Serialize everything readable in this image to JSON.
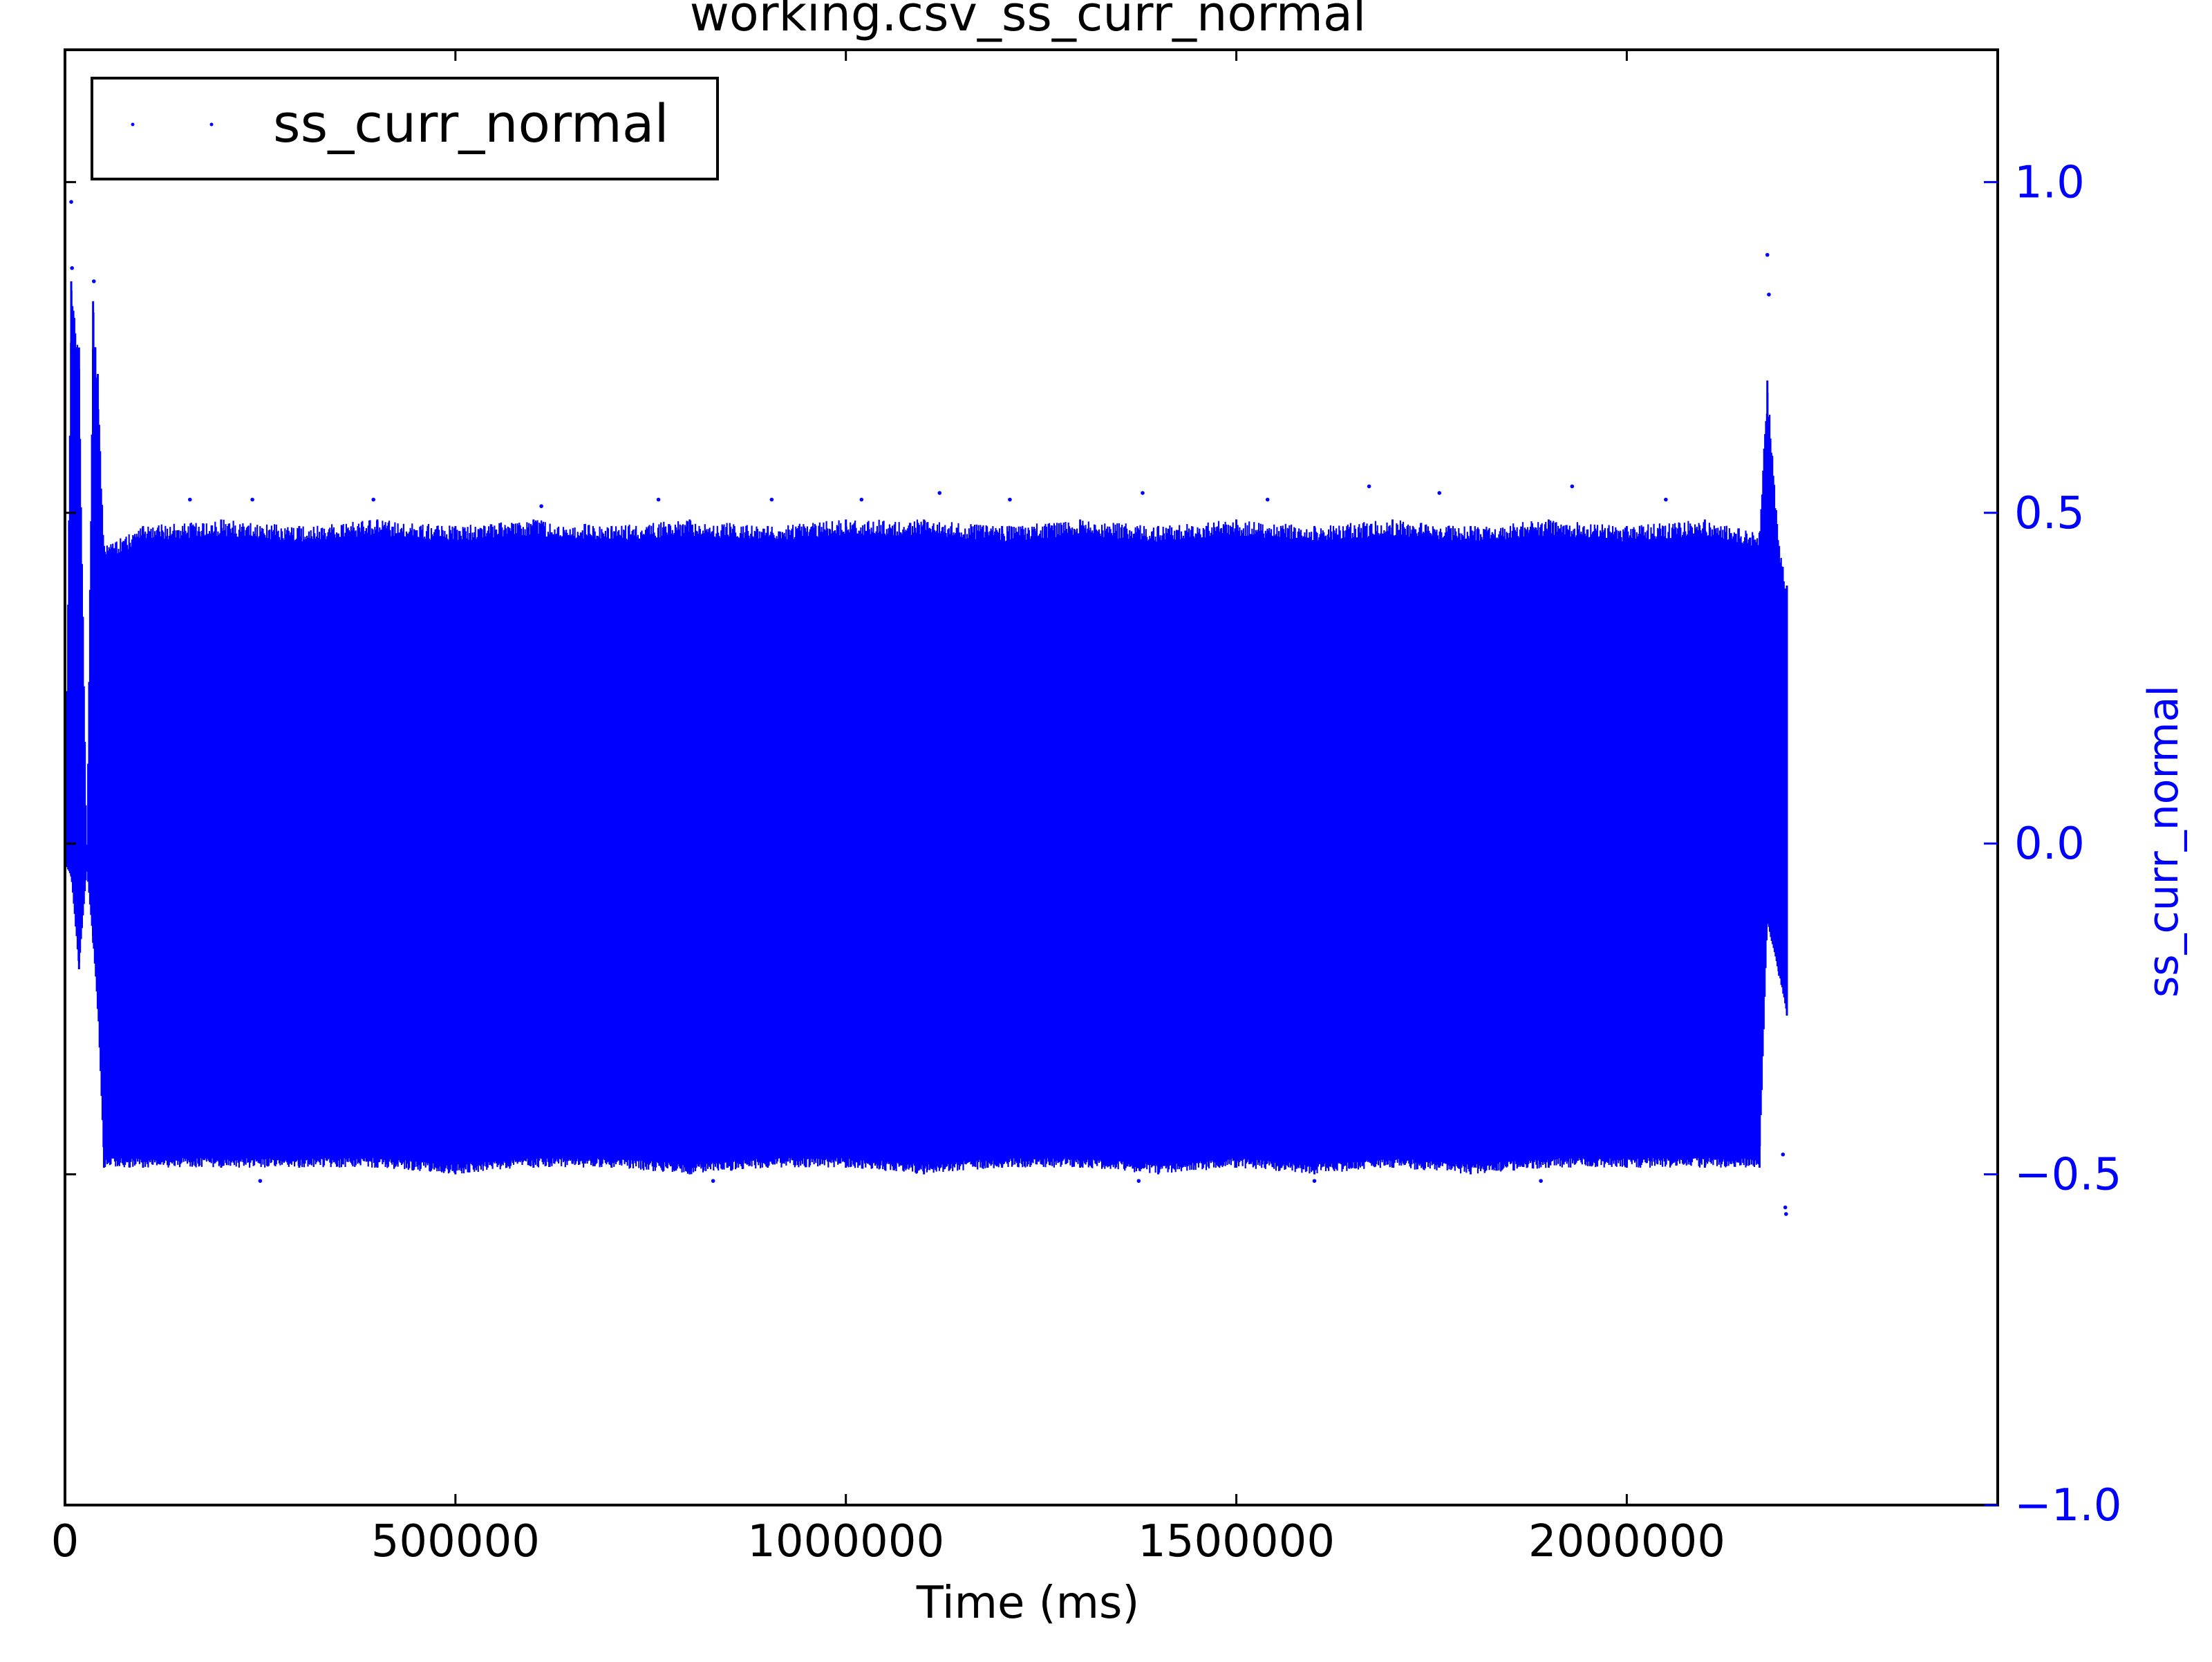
{
  "chart_data": {
    "type": "scatter",
    "title": "working.csv_ss_curr_normal",
    "xlabel": "Time (ms)",
    "ylabel": "ss_curr_normal",
    "xlim": [
      0,
      2475000
    ],
    "ylim": [
      -1.0,
      1.2
    ],
    "x_ticks": [
      0,
      500000,
      1000000,
      1500000,
      2000000
    ],
    "x_tick_labels": [
      "0",
      "500000",
      "1000000",
      "1500000",
      "2000000"
    ],
    "y_ticks": [
      -1.0,
      -0.5,
      0.0,
      0.5,
      1.0
    ],
    "y_tick_labels": [
      "−1.0",
      "−0.5",
      "0.0",
      "0.5",
      "1.0"
    ],
    "y_axis_side": "right",
    "grid": false,
    "legend": {
      "position": "top-left",
      "entries": [
        "ss_curr_normal"
      ]
    },
    "colors": {
      "series": "#0000ff",
      "axis_y": "#0000ff",
      "axis_x": "#000000"
    },
    "series": [
      {
        "name": "ss_curr_normal",
        "marker": "point",
        "color": "#0000ff",
        "envelope": [
          {
            "x": 0,
            "y_min": -0.03,
            "y_max": -0.03
          },
          {
            "x": 8000,
            "y_min": -0.05,
            "y_max": 0.85
          },
          {
            "x": 18000,
            "y_min": -0.19,
            "y_max": 0.75
          },
          {
            "x": 28000,
            "y_min": -0.04,
            "y_max": -0.02
          },
          {
            "x": 36000,
            "y_min": -0.15,
            "y_max": 0.82
          },
          {
            "x": 42000,
            "y_min": -0.25,
            "y_max": 0.71
          },
          {
            "x": 50000,
            "y_min": -0.49,
            "y_max": 0.45
          },
          {
            "x": 100000,
            "y_min": -0.49,
            "y_max": 0.48
          },
          {
            "x": 200000,
            "y_min": -0.49,
            "y_max": 0.49
          },
          {
            "x": 300000,
            "y_min": -0.49,
            "y_max": 0.48
          },
          {
            "x": 400000,
            "y_min": -0.49,
            "y_max": 0.49
          },
          {
            "x": 500000,
            "y_min": -0.5,
            "y_max": 0.48
          },
          {
            "x": 600000,
            "y_min": -0.49,
            "y_max": 0.49
          },
          {
            "x": 700000,
            "y_min": -0.49,
            "y_max": 0.48
          },
          {
            "x": 800000,
            "y_min": -0.5,
            "y_max": 0.49
          },
          {
            "x": 900000,
            "y_min": -0.49,
            "y_max": 0.48
          },
          {
            "x": 1000000,
            "y_min": -0.49,
            "y_max": 0.49
          },
          {
            "x": 1100000,
            "y_min": -0.5,
            "y_max": 0.49
          },
          {
            "x": 1200000,
            "y_min": -0.49,
            "y_max": 0.48
          },
          {
            "x": 1300000,
            "y_min": -0.49,
            "y_max": 0.49
          },
          {
            "x": 1400000,
            "y_min": -0.5,
            "y_max": 0.48
          },
          {
            "x": 1500000,
            "y_min": -0.49,
            "y_max": 0.49
          },
          {
            "x": 1600000,
            "y_min": -0.5,
            "y_max": 0.48
          },
          {
            "x": 1700000,
            "y_min": -0.49,
            "y_max": 0.49
          },
          {
            "x": 1800000,
            "y_min": -0.5,
            "y_max": 0.48
          },
          {
            "x": 1900000,
            "y_min": -0.49,
            "y_max": 0.49
          },
          {
            "x": 2000000,
            "y_min": -0.49,
            "y_max": 0.48
          },
          {
            "x": 2100000,
            "y_min": -0.49,
            "y_max": 0.49
          },
          {
            "x": 2170000,
            "y_min": -0.49,
            "y_max": 0.47
          },
          {
            "x": 2180000,
            "y_min": -0.12,
            "y_max": 0.7
          },
          {
            "x": 2195000,
            "y_min": -0.2,
            "y_max": 0.45
          },
          {
            "x": 2205000,
            "y_min": -0.26,
            "y_max": 0.39
          }
        ],
        "outliers": [
          {
            "x": 8000,
            "y": 0.97
          },
          {
            "x": 9000,
            "y": 0.87
          },
          {
            "x": 37000,
            "y": 0.85
          },
          {
            "x": 2180000,
            "y": 0.89
          },
          {
            "x": 2182000,
            "y": 0.83
          },
          {
            "x": 2200000,
            "y": -0.47
          },
          {
            "x": 2203000,
            "y": -0.55
          },
          {
            "x": 2204000,
            "y": -0.56
          },
          {
            "x": 160000,
            "y": 0.52
          },
          {
            "x": 240000,
            "y": 0.52
          },
          {
            "x": 395000,
            "y": 0.52
          },
          {
            "x": 610000,
            "y": 0.51
          },
          {
            "x": 760000,
            "y": 0.52
          },
          {
            "x": 905000,
            "y": 0.52
          },
          {
            "x": 1020000,
            "y": 0.52
          },
          {
            "x": 1120000,
            "y": 0.53
          },
          {
            "x": 1210000,
            "y": 0.52
          },
          {
            "x": 1380000,
            "y": 0.53
          },
          {
            "x": 1540000,
            "y": 0.52
          },
          {
            "x": 1670000,
            "y": 0.54
          },
          {
            "x": 1760000,
            "y": 0.53
          },
          {
            "x": 1930000,
            "y": 0.54
          },
          {
            "x": 2050000,
            "y": 0.52
          },
          {
            "x": 250000,
            "y": -0.51
          },
          {
            "x": 830000,
            "y": -0.51
          },
          {
            "x": 1375000,
            "y": -0.51
          },
          {
            "x": 1600000,
            "y": -0.51
          },
          {
            "x": 1890000,
            "y": -0.51
          }
        ]
      }
    ]
  }
}
